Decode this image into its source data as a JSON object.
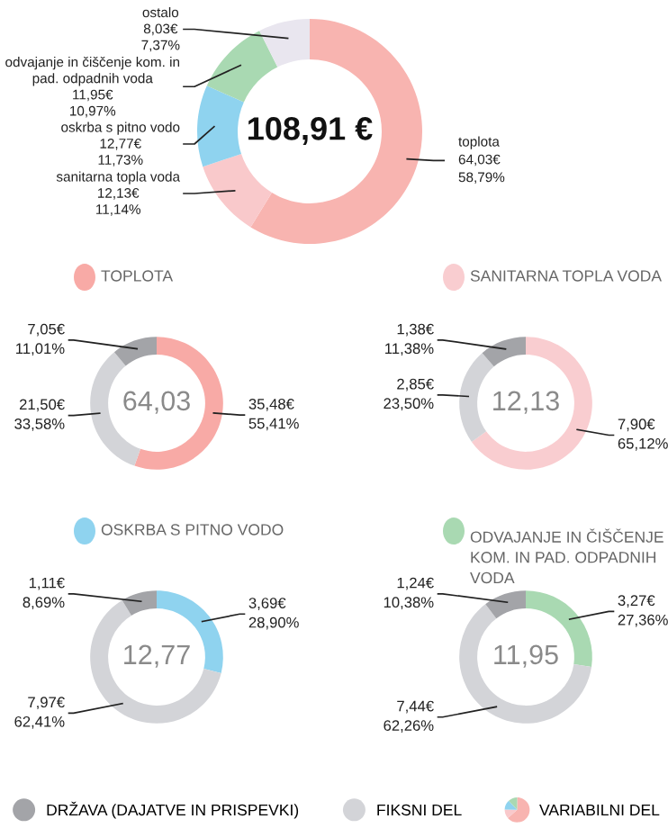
{
  "chart_data": [
    {
      "type": "donut",
      "categories": [
        "toplota",
        "sanitarna topla voda",
        "oskrba s pitno vodo",
        "odvajanje in čiščenje kom. in pad. odpadnih voda",
        "ostalo"
      ],
      "values": [
        64.03,
        12.13,
        12.77,
        11.95,
        8.03
      ],
      "colors": [
        "#f8b4b0",
        "#f9c9cb",
        "#8fd3ef",
        "#a9d9b2",
        "#e9e6ef"
      ],
      "value_labels": [
        "64,03€\n58,79%",
        "12,13€\n11,14%",
        "12,77€\n11,73%",
        "11,95€\n10,97%",
        "8,03€\n7,37%"
      ],
      "annotations": [
        "108,91 €"
      ],
      "legend": false
    },
    {
      "type": "donut",
      "title": "TOPLOTA",
      "categories": [
        null,
        null,
        null
      ],
      "values": [
        35.48,
        21.5,
        7.05
      ],
      "colors": [
        "#f8aaa6",
        "#d3d4d8",
        "#a3a4a8"
      ],
      "value_labels": [
        "35,48€\n55,41%",
        "21,50€\n33,58%",
        "7,05€\n11,01%"
      ],
      "annotations": [
        "64,03"
      ],
      "legend": false
    },
    {
      "type": "donut",
      "title": "SANITARNA TOPLA VODA",
      "categories": [
        null,
        null,
        null
      ],
      "values": [
        7.9,
        2.85,
        1.38
      ],
      "colors": [
        "#f9cdd0",
        "#d3d4d8",
        "#a3a4a8"
      ],
      "value_labels": [
        "7,90€\n65,12%",
        "2,85€\n23,50%",
        "1,38€\n11,38%"
      ],
      "annotations": [
        "12,13"
      ],
      "legend": false
    },
    {
      "type": "donut",
      "title": "OSKRBA S PITNO VODO",
      "categories": [
        null,
        null,
        null
      ],
      "values": [
        3.69,
        7.97,
        1.11
      ],
      "colors": [
        "#8fd3ef",
        "#d3d4d8",
        "#a3a4a8"
      ],
      "value_labels": [
        "3,69€\n28,90%",
        "7,97€\n62,41%",
        "1,11€\n8,69%"
      ],
      "annotations": [
        "12,77"
      ],
      "legend": false
    },
    {
      "type": "donut",
      "title": "ODVAJANJE IN ČIŠČENJE KOM. IN PAD. ODPADNIH VODA",
      "categories": [
        "VARIABILNI DEL",
        "FIKSNI DEL",
        "DRŽAVA (DAJATVE IN PRISPEVKI)"
      ],
      "values": [
        3.27,
        7.44,
        1.24
      ],
      "colors": [
        "#a9d9b2",
        "#d3d4d8",
        "#a3a4a8"
      ],
      "value_labels": [
        "3,27€\n27,36%",
        "7,44€\n62,26%",
        "1,24€\n10,38%"
      ],
      "annotations": [
        "11,95"
      ],
      "legend": "bottom"
    }
  ]
}
